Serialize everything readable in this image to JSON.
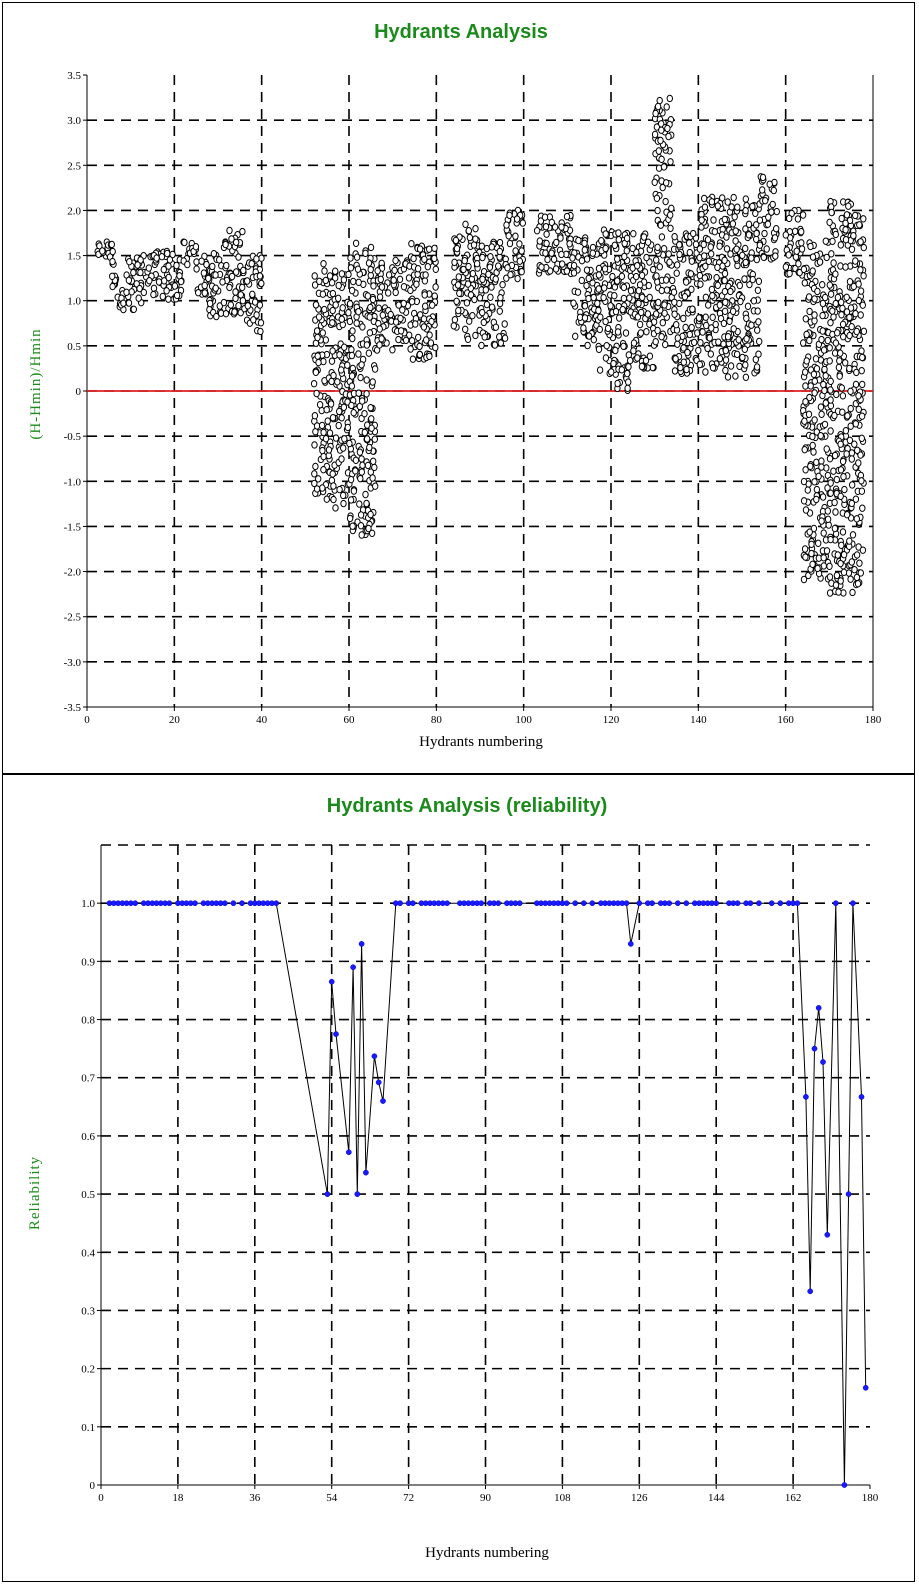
{
  "chart_data": [
    {
      "type": "scatter",
      "title": "Hydrants Analysis",
      "xlabel": "Hydrants numbering",
      "ylabel": "(H-Hmin)/Hmin",
      "xlim": [
        0,
        180
      ],
      "ylim": [
        -3.5,
        3.5
      ],
      "xticks": [
        "0",
        "20",
        "40",
        "60",
        "80",
        "100",
        "120",
        "140",
        "160",
        "180"
      ],
      "yticks": [
        "3.5",
        "3.0",
        "2.5",
        "2.0",
        "1.5",
        "1.0",
        "0.5",
        "0",
        "-0.5",
        "-1.0",
        "-1.5",
        "-2.0",
        "-2.5",
        "-3.0",
        "-3.5"
      ],
      "grid": true,
      "reference_line": {
        "y": 0,
        "color": "#e02020"
      },
      "marker": "open-circle",
      "clusters": [
        {
          "x": [
            2,
            6
          ],
          "y": [
            1.45,
            1.65
          ]
        },
        {
          "x": [
            5,
            7
          ],
          "y": [
            1.15,
            1.45
          ]
        },
        {
          "x": [
            7,
            9
          ],
          "y": [
            0.9,
            1.15
          ]
        },
        {
          "x": [
            9,
            14
          ],
          "y": [
            0.9,
            1.5
          ]
        },
        {
          "x": [
            14,
            20
          ],
          "y": [
            1.0,
            1.55
          ]
        },
        {
          "x": [
            20,
            22
          ],
          "y": [
            1.0,
            1.5
          ]
        },
        {
          "x": [
            22,
            25
          ],
          "y": [
            1.4,
            1.65
          ]
        },
        {
          "x": [
            25,
            28
          ],
          "y": [
            1.05,
            1.5
          ]
        },
        {
          "x": [
            28,
            31
          ],
          "y": [
            0.8,
            1.55
          ]
        },
        {
          "x": [
            31,
            36
          ],
          "y": [
            0.85,
            1.8
          ]
        },
        {
          "x": [
            36,
            40
          ],
          "y": [
            0.65,
            1.5
          ]
        },
        {
          "x": [
            52,
            56
          ],
          "y": [
            -1.2,
            1.5
          ]
        },
        {
          "x": [
            56,
            60
          ],
          "y": [
            -1.3,
            1.4
          ]
        },
        {
          "x": [
            60,
            66
          ],
          "y": [
            -1.6,
            1.65
          ]
        },
        {
          "x": [
            66,
            70
          ],
          "y": [
            0.45,
            1.5
          ]
        },
        {
          "x": [
            70,
            74
          ],
          "y": [
            0.55,
            1.45
          ]
        },
        {
          "x": [
            74,
            80
          ],
          "y": [
            0.35,
            1.65
          ]
        },
        {
          "x": [
            84,
            90
          ],
          "y": [
            0.55,
            1.85
          ]
        },
        {
          "x": [
            90,
            96
          ],
          "y": [
            0.5,
            1.65
          ]
        },
        {
          "x": [
            96,
            100
          ],
          "y": [
            1.2,
            2.0
          ]
        },
        {
          "x": [
            103,
            111
          ],
          "y": [
            1.3,
            1.95
          ]
        },
        {
          "x": [
            111,
            117
          ],
          "y": [
            0.5,
            1.7
          ]
        },
        {
          "x": [
            117,
            124
          ],
          "y": [
            0.0,
            1.8
          ]
        },
        {
          "x": [
            124,
            130
          ],
          "y": [
            0.25,
            1.75
          ]
        },
        {
          "x": [
            130,
            134
          ],
          "y": [
            0.5,
            3.25
          ]
        },
        {
          "x": [
            134,
            140
          ],
          "y": [
            0.15,
            1.75
          ]
        },
        {
          "x": [
            140,
            146
          ],
          "y": [
            0.2,
            2.15
          ]
        },
        {
          "x": [
            146,
            154
          ],
          "y": [
            0.15,
            2.15
          ]
        },
        {
          "x": [
            154,
            158
          ],
          "y": [
            1.45,
            2.4
          ]
        },
        {
          "x": [
            160,
            164
          ],
          "y": [
            1.2,
            2.0
          ]
        },
        {
          "x": [
            164,
            170
          ],
          "y": [
            -2.1,
            1.7
          ]
        },
        {
          "x": [
            170,
            178
          ],
          "y": [
            -2.25,
            2.1
          ]
        }
      ]
    },
    {
      "type": "line",
      "title": "Hydrants Analysis (reliability)",
      "xlabel": "Hydrants numbering",
      "ylabel": "Reliability",
      "xlim": [
        0,
        180
      ],
      "ylim": [
        0,
        1.1
      ],
      "xticks": [
        "0",
        "18",
        "36",
        "54",
        "72",
        "90",
        "108",
        "126",
        "144",
        "162",
        "180"
      ],
      "yticks": [
        "1.0",
        "0.9",
        "0.8",
        "0.7",
        "0.6",
        "0.5",
        "0.4",
        "0.3",
        "0.2",
        "0.1",
        "0"
      ],
      "grid": true,
      "line_color": "#000000",
      "marker_color": "#1a1aff",
      "x": [
        2,
        3,
        4,
        5,
        6,
        7,
        8,
        10,
        11,
        12,
        13,
        14,
        15,
        16,
        18,
        19,
        20,
        21,
        22,
        24,
        25,
        26,
        27,
        28,
        29,
        31,
        33,
        35,
        36,
        37,
        38,
        39,
        40,
        41,
        53,
        54,
        55,
        58,
        59,
        60,
        61,
        62,
        64,
        65,
        66,
        69,
        70,
        72,
        73,
        75,
        76,
        77,
        78,
        79,
        80,
        81,
        84,
        85,
        86,
        87,
        88,
        89,
        91,
        92,
        93,
        95,
        96,
        97,
        98,
        102,
        103,
        104,
        105,
        106,
        107,
        108,
        109,
        111,
        113,
        115,
        117,
        118,
        119,
        120,
        121,
        122,
        123,
        124,
        126,
        128,
        129,
        131,
        132,
        133,
        135,
        137,
        139,
        140,
        141,
        142,
        143,
        144,
        147,
        148,
        149,
        151,
        152,
        154,
        157,
        159,
        161,
        162,
        163,
        165,
        166,
        167,
        168,
        169,
        170,
        172,
        174,
        175,
        176,
        178,
        179
      ],
      "y": [
        1,
        1,
        1,
        1,
        1,
        1,
        1,
        1,
        1,
        1,
        1,
        1,
        1,
        1,
        1,
        1,
        1,
        1,
        1,
        1,
        1,
        1,
        1,
        1,
        1,
        1,
        1,
        1,
        1,
        1,
        1,
        1,
        1,
        1,
        0.5,
        0.865,
        0.775,
        0.572,
        0.89,
        0.5,
        0.93,
        0.537,
        0.737,
        0.692,
        0.66,
        1,
        1,
        1,
        1,
        1,
        1,
        1,
        1,
        1,
        1,
        1,
        1,
        1,
        1,
        1,
        1,
        1,
        1,
        1,
        1,
        1,
        1,
        1,
        1,
        1,
        1,
        1,
        1,
        1,
        1,
        1,
        1,
        1,
        1,
        1,
        1,
        1,
        1,
        1,
        1,
        1,
        1,
        0.93,
        1,
        1,
        1,
        1,
        1,
        1,
        1,
        1,
        1,
        1,
        1,
        1,
        1,
        1,
        1,
        1,
        1,
        1,
        1,
        1,
        1,
        1,
        1,
        1,
        1,
        0.667,
        0.333,
        0.75,
        0.82,
        0.727,
        0.43,
        1,
        0,
        0.5,
        1,
        0.667,
        0.167
      ]
    }
  ]
}
